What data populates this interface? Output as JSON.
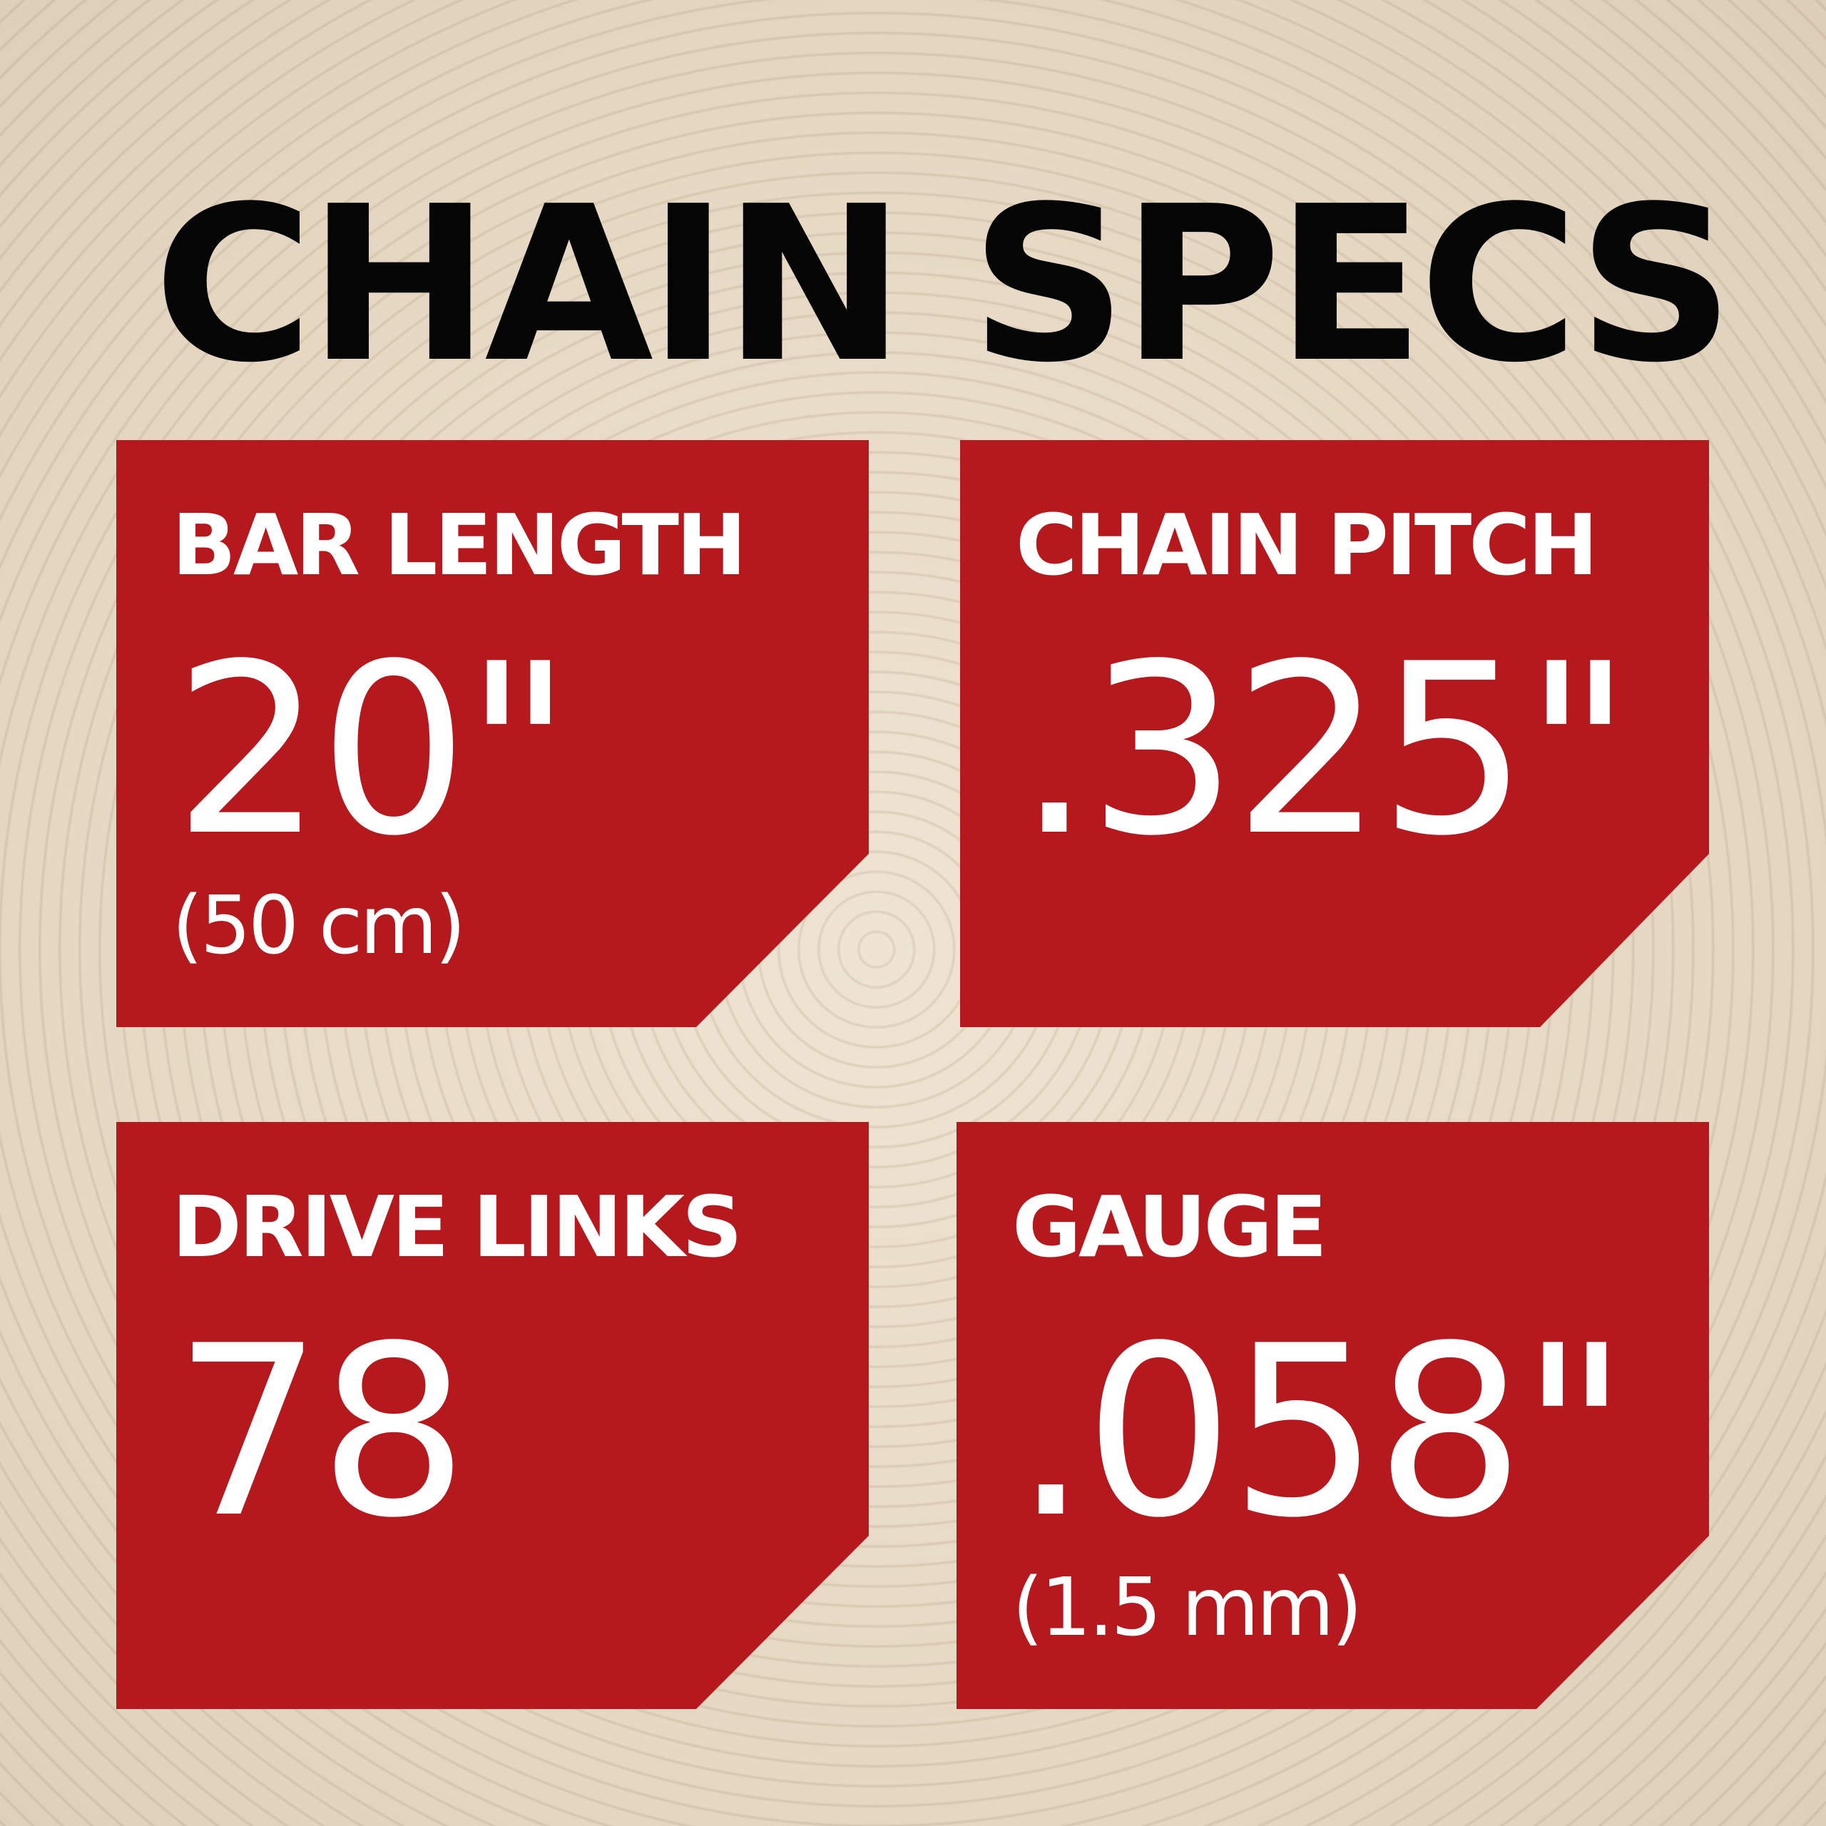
{
  "title": "CHAIN SPECS",
  "colors": {
    "card": "#b5191e",
    "title": "#050505",
    "text": "#ffffff"
  },
  "specs": [
    {
      "label": "BAR LENGTH",
      "value": "20\"",
      "sub": "(50 cm)"
    },
    {
      "label": "CHAIN PITCH",
      "value": ".325\"",
      "sub": ""
    },
    {
      "label": "DRIVE LINKS",
      "value": "78",
      "sub": ""
    },
    {
      "label": "GAUGE",
      "value": ".058\"",
      "sub": "(1.5 mm)"
    }
  ]
}
